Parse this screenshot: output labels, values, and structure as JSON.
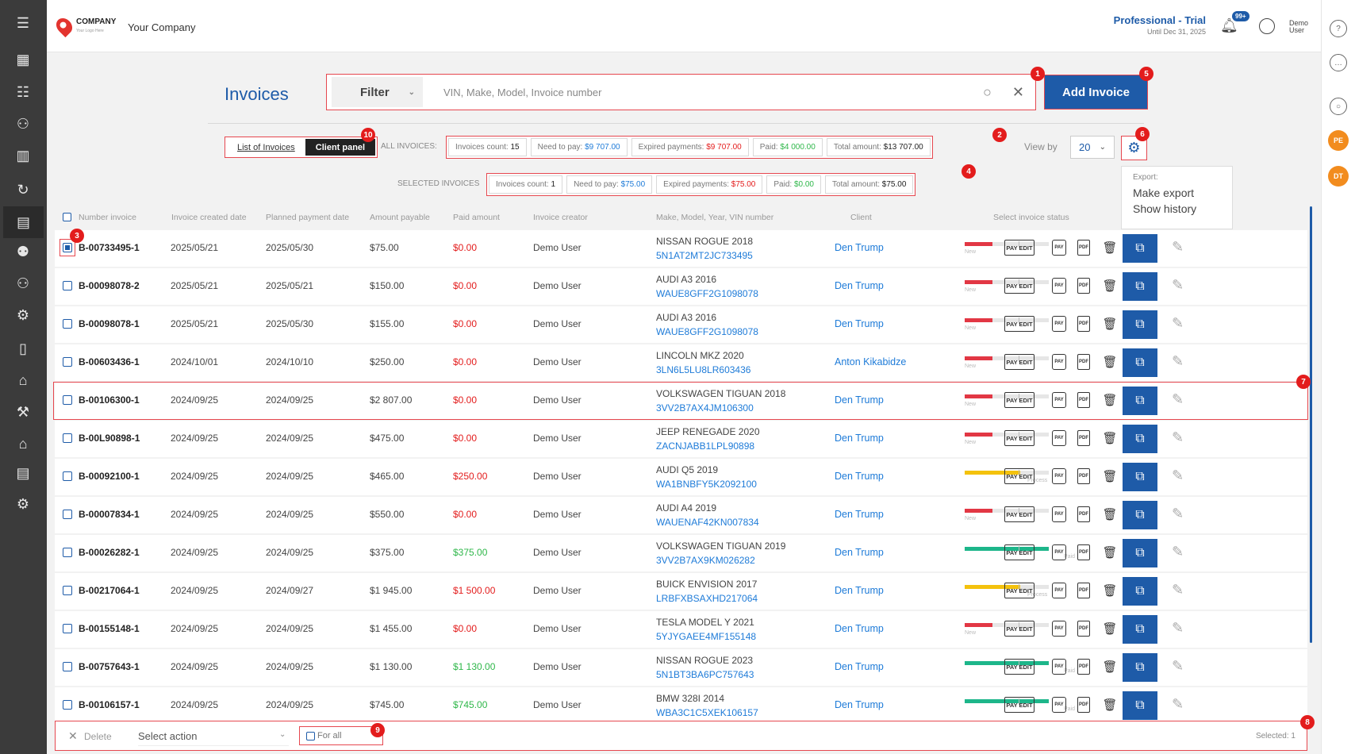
{
  "header": {
    "logo_text": "COMPANY",
    "logo_sub": "Your Logo Here",
    "company_name": "Your Company",
    "plan_title": "Professional - Trial",
    "plan_until": "Until Dec 31, 2025",
    "notifications_badge": "99+",
    "user_line1": "Demo",
    "user_line2": "User"
  },
  "right_sidebar": {
    "badge_pe": "PE",
    "badge_dt": "DT"
  },
  "page": {
    "title": "Invoices",
    "filter_label": "Filter",
    "search_placeholder": "VIN, Make, Model, Invoice number",
    "add_button": "Add Invoice"
  },
  "tabs": {
    "list": "List of Invoices",
    "client": "Client panel"
  },
  "all_invoices": {
    "label": "ALL INVOICES:",
    "count_label": "Invoices count:",
    "count": "15",
    "need_label": "Need to pay:",
    "need": "$9 707.00",
    "expired_label": "Expired payments:",
    "expired": "$9 707.00",
    "paid_label": "Paid:",
    "paid": "$4 000.00",
    "total_label": "Total amount:",
    "total": "$13 707.00"
  },
  "selected_invoices": {
    "label": "SELECTED INVOICES",
    "count_label": "Invoices count:",
    "count": "1",
    "need_label": "Need to pay:",
    "need": "$75.00",
    "expired_label": "Expired payments:",
    "expired": "$75.00",
    "paid_label": "Paid:",
    "paid": "$0.00",
    "total_label": "Total amount:",
    "total": "$75.00"
  },
  "view": {
    "label": "View by",
    "value": "20"
  },
  "export_menu": {
    "title": "Export:",
    "items": [
      "Make export",
      "Show history"
    ]
  },
  "table": {
    "headers": [
      "Number invoice",
      "Invoice created date",
      "Planned payment date",
      "Amount payable",
      "Paid amount",
      "Invoice creator",
      "Make, Model, Year, VIN number",
      "Client",
      "Select invoice status"
    ],
    "action_labels": {
      "pay_edit": "PAY EDIT",
      "pay": "PAY",
      "pdf": "PDF"
    },
    "rows": [
      {
        "number": "B-00733495-1",
        "created": "2025/05/21",
        "planned": "2025/05/30",
        "amount": "$75.00",
        "paid": "$0.00",
        "paid_color": "red",
        "creator": "Demo User",
        "car": "NISSAN ROGUE 2018",
        "vin": "5N1AT2MT2JC733495",
        "client": "Den Trump",
        "status": "New",
        "progress": 0.33,
        "checked": true
      },
      {
        "number": "B-00098078-2",
        "created": "2025/05/21",
        "planned": "2025/05/21",
        "amount": "$150.00",
        "paid": "$0.00",
        "paid_color": "red",
        "creator": "Demo User",
        "car": "AUDI A3 2016",
        "vin": "WAUE8GFF2G1098078",
        "client": "Den Trump",
        "status": "New",
        "progress": 0.33,
        "checked": false
      },
      {
        "number": "B-00098078-1",
        "created": "2025/05/21",
        "planned": "2025/05/30",
        "amount": "$155.00",
        "paid": "$0.00",
        "paid_color": "red",
        "creator": "Demo User",
        "car": "AUDI A3 2016",
        "vin": "WAUE8GFF2G1098078",
        "client": "Den Trump",
        "status": "New",
        "progress": 0.33,
        "checked": false
      },
      {
        "number": "B-00603436-1",
        "created": "2024/10/01",
        "planned": "2024/10/10",
        "amount": "$250.00",
        "paid": "$0.00",
        "paid_color": "red",
        "creator": "Demo User",
        "car": "LINCOLN MKZ 2020",
        "vin": "3LN6L5LU8LR603436",
        "client": "Anton Kikabidze",
        "status": "New",
        "progress": 0.33,
        "checked": false
      },
      {
        "number": "B-00106300-1",
        "created": "2024/09/25",
        "planned": "2024/09/25",
        "amount": "$2 807.00",
        "paid": "$0.00",
        "paid_color": "red",
        "creator": "Demo User",
        "car": "VOLKSWAGEN TIGUAN 2018",
        "vin": "3VV2B7AX4JM106300",
        "client": "Den Trump",
        "status": "New",
        "progress": 0.33,
        "checked": false
      },
      {
        "number": "B-00L90898-1",
        "created": "2024/09/25",
        "planned": "2024/09/25",
        "amount": "$475.00",
        "paid": "$0.00",
        "paid_color": "red",
        "creator": "Demo User",
        "car": "JEEP RENEGADE 2020",
        "vin": "ZACNJABB1LPL90898",
        "client": "Den Trump",
        "status": "New",
        "progress": 0.33,
        "checked": false
      },
      {
        "number": "B-00092100-1",
        "created": "2024/09/25",
        "planned": "2024/09/25",
        "amount": "$465.00",
        "paid": "$250.00",
        "paid_color": "red",
        "creator": "Demo User",
        "car": "AUDI Q5 2019",
        "vin": "WA1BNBFY5K2092100",
        "client": "Den Trump",
        "status": "Process",
        "progress": 0.66,
        "checked": false
      },
      {
        "number": "B-00007834-1",
        "created": "2024/09/25",
        "planned": "2024/09/25",
        "amount": "$550.00",
        "paid": "$0.00",
        "paid_color": "red",
        "creator": "Demo User",
        "car": "AUDI A4 2019",
        "vin": "WAUENAF42KN007834",
        "client": "Den Trump",
        "status": "New",
        "progress": 0.33,
        "checked": false
      },
      {
        "number": "B-00026282-1",
        "created": "2024/09/25",
        "planned": "2024/09/25",
        "amount": "$375.00",
        "paid": "$375.00",
        "paid_color": "green",
        "creator": "Demo User",
        "car": "VOLKSWAGEN TIGUAN 2019",
        "vin": "3VV2B7AX9KM026282",
        "client": "Den Trump",
        "status": "Paid",
        "progress": 1.0,
        "checked": false
      },
      {
        "number": "B-00217064-1",
        "created": "2024/09/25",
        "planned": "2024/09/27",
        "amount": "$1 945.00",
        "paid": "$1 500.00",
        "paid_color": "red",
        "creator": "Demo User",
        "car": "BUICK ENVISION 2017",
        "vin": "LRBFXBSAXHD217064",
        "client": "Den Trump",
        "status": "Process",
        "progress": 0.66,
        "checked": false
      },
      {
        "number": "B-00155148-1",
        "created": "2024/09/25",
        "planned": "2024/09/25",
        "amount": "$1 455.00",
        "paid": "$0.00",
        "paid_color": "red",
        "creator": "Demo User",
        "car": "TESLA MODEL Y 2021",
        "vin": "5YJYGAEE4MF155148",
        "client": "Den Trump",
        "status": "New",
        "progress": 0.33,
        "checked": false
      },
      {
        "number": "B-00757643-1",
        "created": "2024/09/25",
        "planned": "2024/09/25",
        "amount": "$1 130.00",
        "paid": "$1 130.00",
        "paid_color": "green",
        "creator": "Demo User",
        "car": "NISSAN ROGUE 2023",
        "vin": "5N1BT3BA6PC757643",
        "client": "Den Trump",
        "status": "Paid",
        "progress": 1.0,
        "checked": false
      },
      {
        "number": "B-00106157-1",
        "created": "2024/09/25",
        "planned": "2024/09/25",
        "amount": "$745.00",
        "paid": "$745.00",
        "paid_color": "green",
        "creator": "Demo User",
        "car": "BMW 328I 2014",
        "vin": "WBA3C1C5XEK106157",
        "client": "Den Trump",
        "status": "Paid",
        "progress": 1.0,
        "checked": false
      }
    ]
  },
  "bottom_bar": {
    "delete": "Delete",
    "select_action": "Select action",
    "for_all": "For all",
    "selected": "Selected: 1"
  },
  "markers": [
    "1",
    "2",
    "3",
    "4",
    "5",
    "6",
    "7",
    "8",
    "9",
    "10"
  ],
  "colors": {
    "accent": "#1e5ba8",
    "marker": "#e31c1c",
    "status_new": "#e23744",
    "status_process": "#f4c20d",
    "status_paid": "#1db68a"
  }
}
